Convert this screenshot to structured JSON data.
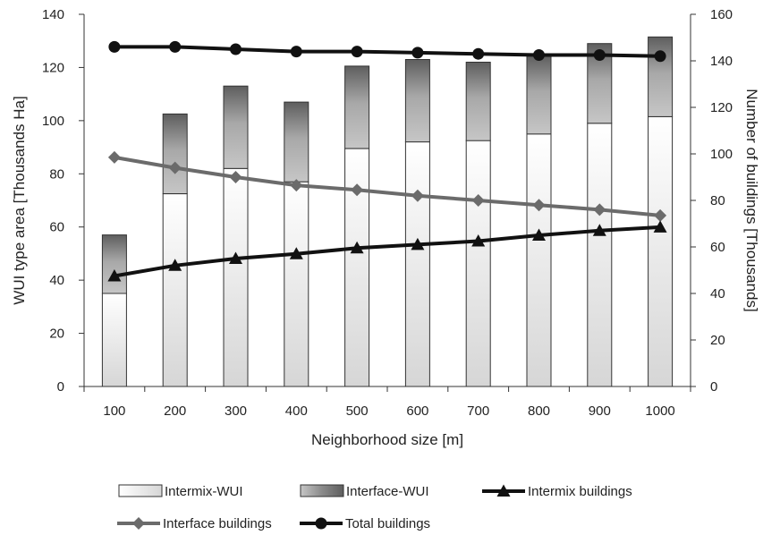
{
  "chart_data": {
    "type": "bar",
    "categories": [
      "100",
      "200",
      "300",
      "400",
      "500",
      "600",
      "700",
      "800",
      "900",
      "1000"
    ],
    "xlabel": "Neighborhood size [m]",
    "ylabel_left": "WUI type area [Thousands Ha]",
    "ylabel_right": "Number of buildings [Thousands]",
    "ylim_left": [
      0,
      140
    ],
    "ylim_right": [
      0,
      160
    ],
    "yticks_left": [
      0,
      20,
      40,
      60,
      80,
      100,
      120,
      140
    ],
    "yticks_right": [
      0,
      20,
      40,
      60,
      80,
      100,
      120,
      140,
      160
    ],
    "stacked_bars": [
      {
        "name": "Intermix-WUI",
        "axis": "left",
        "values": [
          35,
          72.5,
          82,
          77,
          89.5,
          92,
          92.5,
          95,
          99,
          101.5
        ]
      },
      {
        "name": "Interface-WUI",
        "axis": "left",
        "values": [
          22,
          30,
          31,
          30,
          31,
          31,
          29.5,
          29.5,
          30,
          30
        ]
      }
    ],
    "lines": [
      {
        "name": "Intermix buildings",
        "axis": "right",
        "marker": "triangle",
        "values": [
          47.5,
          52,
          55,
          57,
          59.5,
          61,
          62.5,
          65,
          67,
          68.5
        ]
      },
      {
        "name": "Interface buildings",
        "axis": "right",
        "marker": "diamond",
        "values": [
          98.5,
          94,
          90,
          86.5,
          84.5,
          82,
          80,
          78,
          76,
          73.5
        ]
      },
      {
        "name": "Total buildings",
        "axis": "right",
        "marker": "circle",
        "values": [
          146,
          146,
          145,
          144,
          144,
          143.5,
          143,
          142.5,
          142.5,
          142
        ]
      }
    ],
    "legend_placement": "bottom",
    "grid": false
  },
  "colors": {
    "intermix_bar_top": "#ffffff",
    "intermix_bar_bottom": "#d6d6d6",
    "interface_bar_light": "#bcbcbc",
    "interface_bar_dark": "#6e6e6e",
    "intermix_line": "#111111",
    "interface_line": "#6b6b6b",
    "total_line": "#111111"
  }
}
